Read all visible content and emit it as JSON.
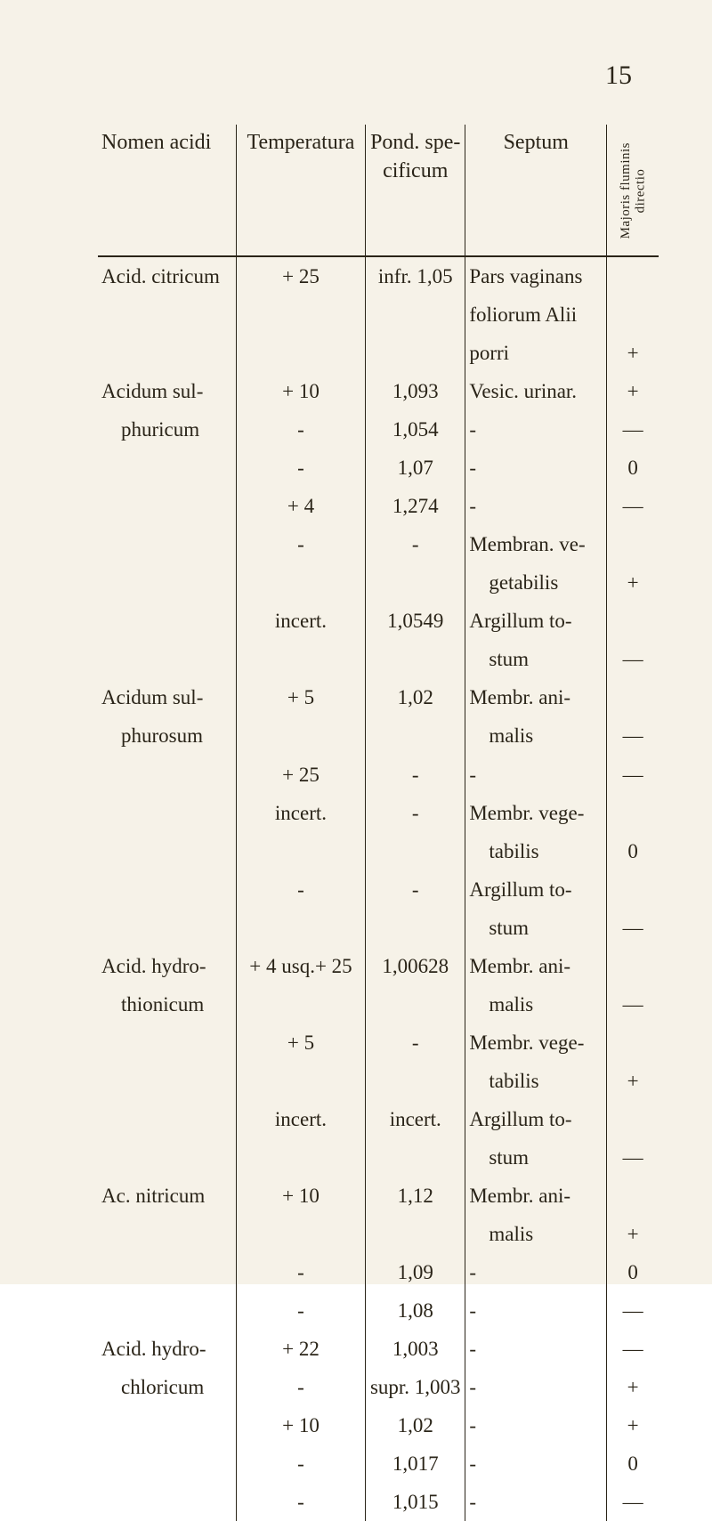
{
  "page_number": "15",
  "headers": {
    "c0": "Nomen acidi",
    "c1": "Temperatura",
    "c2": "Pond. spe-\ncificum",
    "c3": "Septum",
    "c4": "Majoris fluminis\ndirectio"
  },
  "rows": [
    {
      "c0": "Acid. citricum",
      "c1": "+ 25",
      "c2": "infr. 1,05",
      "c3": "Pars vaginans",
      "c4": ""
    },
    {
      "c0": "",
      "c1": "",
      "c2": "",
      "c3": "foliorum Alii",
      "c4": ""
    },
    {
      "c0": "",
      "c1": "",
      "c2": "",
      "c3": "porri",
      "c4": "+"
    },
    {
      "c0": "Acidum sul-",
      "c1": "+ 10",
      "c2": "1,093",
      "c3": "Vesic. urinar.",
      "c4": "+"
    },
    {
      "c0": "phuricum",
      "c1": "-",
      "c2": "1,054",
      "c3": "-",
      "c4": "—",
      "indent0": true
    },
    {
      "c0": "",
      "c1": "-",
      "c2": "1,07",
      "c3": "-",
      "c4": "0"
    },
    {
      "c0": "",
      "c1": "+ 4",
      "c2": "1,274",
      "c3": "-",
      "c4": "—"
    },
    {
      "c0": "",
      "c1": "-",
      "c2": "-",
      "c3": "Membran. ve-",
      "c4": ""
    },
    {
      "c0": "",
      "c1": "",
      "c2": "",
      "c3": "getabilis",
      "c4": "+",
      "indent3": true
    },
    {
      "c0": "",
      "c1": "incert.",
      "c2": "1,0549",
      "c3": "Argillum to-",
      "c4": ""
    },
    {
      "c0": "",
      "c1": "",
      "c2": "",
      "c3": "stum",
      "c4": "—",
      "indent3": true
    },
    {
      "c0": "Acidum sul-",
      "c1": "+ 5",
      "c2": "1,02",
      "c3": "Membr. ani-",
      "c4": ""
    },
    {
      "c0": "phurosum",
      "c1": "",
      "c2": "",
      "c3": "malis",
      "c4": "—",
      "indent0": true,
      "indent3": true
    },
    {
      "c0": "",
      "c1": "+ 25",
      "c2": "-",
      "c3": "-",
      "c4": "—"
    },
    {
      "c0": "",
      "c1": "incert.",
      "c2": "-",
      "c3": "Membr. vege-",
      "c4": ""
    },
    {
      "c0": "",
      "c1": "",
      "c2": "",
      "c3": "tabilis",
      "c4": "0",
      "indent3": true
    },
    {
      "c0": "",
      "c1": "-",
      "c2": "-",
      "c3": "Argillum to-",
      "c4": ""
    },
    {
      "c0": "",
      "c1": "",
      "c2": "",
      "c3": "stum",
      "c4": "—",
      "indent3": true
    },
    {
      "c0": "Acid. hydro-",
      "c1": "+ 4 usq.+ 25",
      "c2": "1,00628",
      "c3": "Membr. ani-",
      "c4": ""
    },
    {
      "c0": "thionicum",
      "c1": "",
      "c2": "",
      "c3": "malis",
      "c4": "—",
      "indent0": true,
      "indent3": true
    },
    {
      "c0": "",
      "c1": "+ 5",
      "c2": "-",
      "c3": "Membr. vege-",
      "c4": ""
    },
    {
      "c0": "",
      "c1": "",
      "c2": "",
      "c3": "tabilis",
      "c4": "+",
      "indent3": true
    },
    {
      "c0": "",
      "c1": "incert.",
      "c2": "incert.",
      "c3": "Argillum to-",
      "c4": ""
    },
    {
      "c0": "",
      "c1": "",
      "c2": "",
      "c3": "stum",
      "c4": "—",
      "indent3": true
    },
    {
      "c0": "Ac. nitricum",
      "c1": "+ 10",
      "c2": "1,12",
      "c3": "Membr. ani-",
      "c4": ""
    },
    {
      "c0": "",
      "c1": "",
      "c2": "",
      "c3": "malis",
      "c4": "+",
      "indent3": true
    },
    {
      "c0": "",
      "c1": "-",
      "c2": "1,09",
      "c3": "-",
      "c4": "0"
    },
    {
      "c0": "",
      "c1": "-",
      "c2": "1,08",
      "c3": "-",
      "c4": "—"
    },
    {
      "c0": "Acid. hydro-",
      "c1": "+ 22",
      "c2": "1,003",
      "c3": "-",
      "c4": "—"
    },
    {
      "c0": "chloricum",
      "c1": "-",
      "c2": "supr. 1,003",
      "c3": "-",
      "c4": "+",
      "indent0": true
    },
    {
      "c0": "",
      "c1": "+ 10",
      "c2": "1,02",
      "c3": "-",
      "c4": "+"
    },
    {
      "c0": "",
      "c1": "-",
      "c2": "1,017",
      "c3": "-",
      "c4": "0"
    },
    {
      "c0": "",
      "c1": "-",
      "c2": "1,015",
      "c3": "-",
      "c4": "—"
    }
  ]
}
